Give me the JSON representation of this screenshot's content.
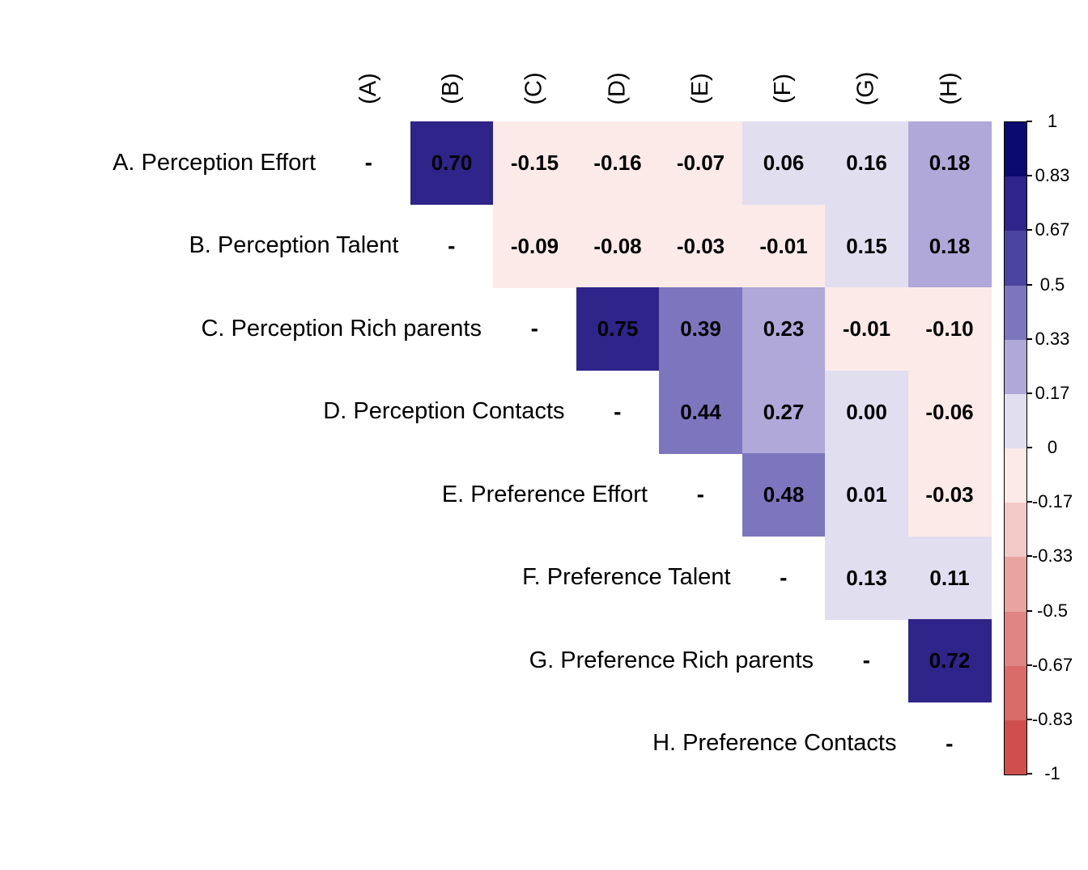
{
  "figure": {
    "background": "#ffffff",
    "text_color": "#000000"
  },
  "chart_data": {
    "type": "heatmap",
    "title": "",
    "subtitle": "",
    "description": "Upper-triangular correlation matrix with discrete blue-red color scale",
    "row_labels": [
      "A. Perception Effort",
      "B. Perception Talent",
      "C. Perception Rich parents",
      "D. Perception Contacts",
      "E. Preference Effort",
      "F. Preference Talent",
      "G. Preference Rich parents",
      "H. Preference Contacts"
    ],
    "col_labels": [
      "(A)",
      "(B)",
      "(C)",
      "(D)",
      "(E)",
      "(F)",
      "(G)",
      "(H)"
    ],
    "diagonal_marker": "-",
    "values": [
      [
        null,
        "0.70",
        "-0.15",
        "-0.16",
        "-0.07",
        "0.06",
        "0.16",
        "0.18"
      ],
      [
        null,
        null,
        "-0.09",
        "-0.08",
        "-0.03",
        "-0.01",
        "0.15",
        "0.18"
      ],
      [
        null,
        null,
        null,
        "0.75",
        "0.39",
        "0.23",
        "-0.01",
        "-0.10"
      ],
      [
        null,
        null,
        null,
        null,
        "0.44",
        "0.27",
        "0.00",
        "-0.06"
      ],
      [
        null,
        null,
        null,
        null,
        null,
        "0.48",
        "0.01",
        "-0.03"
      ],
      [
        null,
        null,
        null,
        null,
        null,
        null,
        "0.13",
        "0.11"
      ],
      [
        null,
        null,
        null,
        null,
        null,
        null,
        null,
        "0.72"
      ],
      [
        null,
        null,
        null,
        null,
        null,
        null,
        null,
        null
      ]
    ],
    "grid": "off",
    "legend_position": "right",
    "colorbar": {
      "min": -1,
      "max": 1,
      "tick_labels": [
        "1",
        "0.83",
        "0.67",
        "0.5",
        "0.33",
        "0.17",
        "0",
        "-0.17",
        "-0.33",
        "-0.5",
        "-0.67",
        "-0.83",
        "-1"
      ],
      "segment_colors_top_to_bottom": [
        "#0a0a70",
        "#2e2489",
        "#4c44a1",
        "#7d76bf",
        "#afa8d8",
        "#e1def0",
        "#fbeae7",
        "#f2c9c7",
        "#e9a3a1",
        "#e08583",
        "#d96b68",
        "#d04f4c"
      ]
    }
  }
}
